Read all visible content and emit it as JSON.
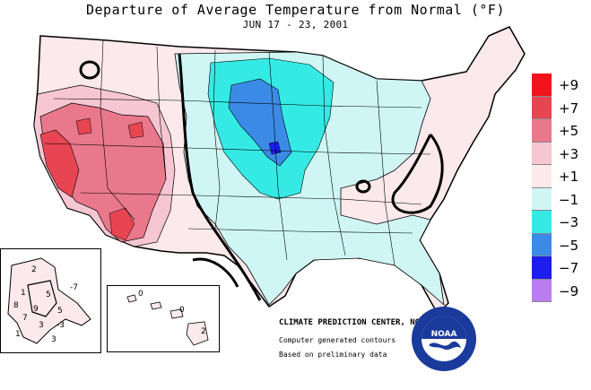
{
  "title": "Departure of Average Temperature from Normal (°F)",
  "subtitle": "JUN 17 - 23, 2001",
  "legend": [
    {
      "label": "+9",
      "color": "#f2131c"
    },
    {
      "label": "+7",
      "color": "#e84553"
    },
    {
      "label": "+5",
      "color": "#e9788c"
    },
    {
      "label": "+3",
      "color": "#f6c6d2"
    },
    {
      "label": "+1",
      "color": "#fbe9ec"
    },
    {
      "label": "−1",
      "color": "#cff6f4"
    },
    {
      "label": "−3",
      "color": "#35eae4"
    },
    {
      "label": "−5",
      "color": "#3b8be6"
    },
    {
      "label": "−7",
      "color": "#1d1df0"
    },
    {
      "label": "−9",
      "color": "#bb7cf0"
    }
  ],
  "credits": {
    "center": "CLIMATE PREDICTION CENTER, NOAA",
    "contours": "Computer generated contours",
    "data": "Based on preliminary data"
  },
  "alaska_labels": [
    "2",
    "1",
    "5",
    "-7",
    "8",
    "9",
    "5",
    "7",
    "3",
    "-3",
    "1",
    "3"
  ],
  "hawaii_labels": [
    "0",
    "0",
    "2"
  ],
  "logo_text": "NOAA"
}
